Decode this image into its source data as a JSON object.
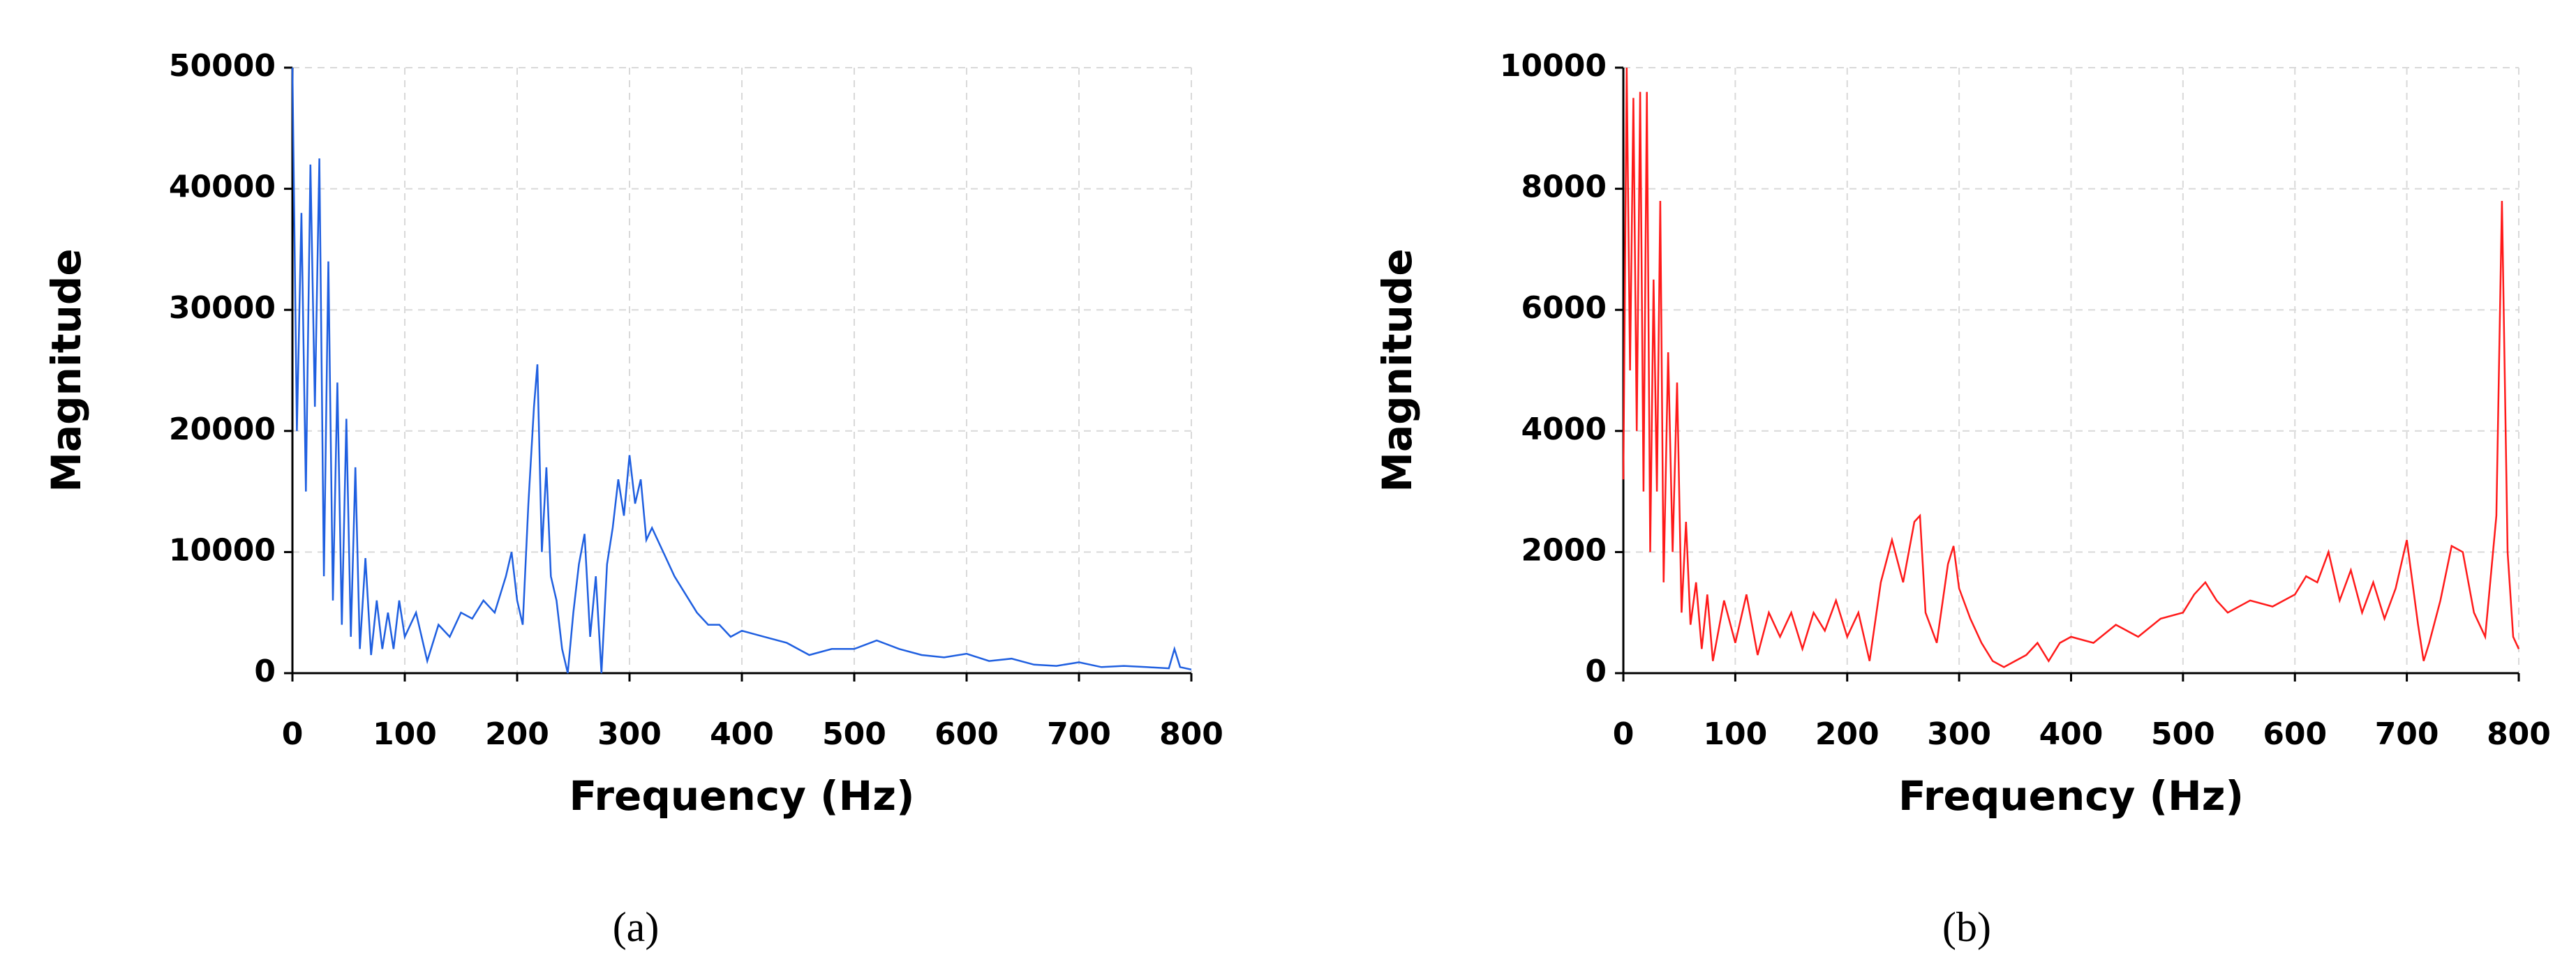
{
  "chart_data": [
    {
      "type": "line",
      "xlabel": "Frequency (Hz)",
      "ylabel": "Magnitude",
      "caption": "(a)",
      "grid": true,
      "xlim": [
        0,
        800
      ],
      "xticks": [
        0,
        100,
        200,
        300,
        400,
        500,
        600,
        700,
        800
      ],
      "ylim": [
        0,
        50000
      ],
      "yticks": [
        0,
        10000,
        20000,
        30000,
        40000,
        50000
      ],
      "x": [
        0,
        4,
        8,
        12,
        16,
        20,
        24,
        28,
        32,
        36,
        40,
        44,
        48,
        52,
        56,
        60,
        65,
        70,
        75,
        80,
        85,
        90,
        95,
        100,
        110,
        120,
        130,
        140,
        150,
        160,
        170,
        180,
        190,
        195,
        200,
        205,
        210,
        215,
        218,
        222,
        226,
        230,
        235,
        240,
        245,
        250,
        255,
        260,
        265,
        270,
        275,
        280,
        285,
        290,
        295,
        300,
        305,
        310,
        315,
        320,
        330,
        340,
        350,
        360,
        370,
        380,
        390,
        400,
        420,
        440,
        460,
        480,
        500,
        520,
        540,
        560,
        580,
        600,
        620,
        640,
        660,
        680,
        700,
        720,
        740,
        760,
        780,
        785,
        790,
        800
      ],
      "series": [
        {
          "color": "#1f5fe0",
          "values": [
            50000,
            20000,
            38000,
            15000,
            42000,
            22000,
            42500,
            8000,
            34000,
            6000,
            24000,
            4000,
            21000,
            3000,
            17000,
            2000,
            9500,
            1500,
            6000,
            2000,
            5000,
            2000,
            6000,
            3000,
            5000,
            1000,
            4000,
            3000,
            5000,
            4500,
            6000,
            5000,
            8000,
            10000,
            6000,
            4000,
            14000,
            22000,
            25500,
            10000,
            17000,
            8000,
            6000,
            2000,
            0,
            5000,
            9000,
            11500,
            3000,
            8000,
            0,
            9000,
            12000,
            16000,
            13000,
            18000,
            14000,
            16000,
            11000,
            12000,
            10000,
            8000,
            6500,
            5000,
            4000,
            4000,
            3000,
            3500,
            3000,
            2500,
            1500,
            2000,
            2000,
            2700,
            2000,
            1500,
            1300,
            1600,
            1000,
            1200,
            700,
            600,
            900,
            500,
            600,
            500,
            400,
            2000,
            500,
            300
          ]
        }
      ]
    },
    {
      "type": "line",
      "xlabel": "Frequency (Hz)",
      "ylabel": "Magnitude",
      "caption": "(b)",
      "grid": true,
      "xlim": [
        0,
        800
      ],
      "xticks": [
        0,
        100,
        200,
        300,
        400,
        500,
        600,
        700,
        800
      ],
      "ylim": [
        0,
        10000
      ],
      "yticks": [
        0,
        2000,
        4000,
        6000,
        8000,
        10000
      ],
      "x": [
        0,
        3,
        6,
        9,
        12,
        15,
        18,
        21,
        24,
        27,
        30,
        33,
        36,
        40,
        44,
        48,
        52,
        56,
        60,
        65,
        70,
        75,
        80,
        90,
        100,
        110,
        120,
        130,
        140,
        150,
        160,
        170,
        180,
        190,
        200,
        210,
        220,
        230,
        240,
        250,
        260,
        265,
        270,
        280,
        290,
        295,
        300,
        310,
        320,
        330,
        340,
        350,
        360,
        370,
        380,
        390,
        400,
        420,
        440,
        460,
        480,
        500,
        510,
        520,
        530,
        540,
        560,
        580,
        600,
        610,
        620,
        630,
        640,
        650,
        660,
        670,
        680,
        690,
        700,
        710,
        715,
        720,
        730,
        740,
        750,
        760,
        770,
        775,
        780,
        785,
        790,
        795,
        800
      ],
      "series": [
        {
          "color": "#ff1a1a",
          "values": [
            3200,
            10000,
            5000,
            9500,
            4000,
            9600,
            3000,
            9600,
            2000,
            6500,
            3000,
            7800,
            1500,
            5300,
            2000,
            4800,
            1000,
            2500,
            800,
            1500,
            400,
            1300,
            200,
            1200,
            500,
            1300,
            300,
            1000,
            600,
            1000,
            400,
            1000,
            700,
            1200,
            600,
            1000,
            200,
            1500,
            2200,
            1500,
            2500,
            2600,
            1000,
            500,
            1800,
            2100,
            1400,
            900,
            500,
            200,
            100,
            200,
            300,
            500,
            200,
            500,
            600,
            500,
            800,
            600,
            900,
            1000,
            1300,
            1500,
            1200,
            1000,
            1200,
            1100,
            1300,
            1600,
            1500,
            2000,
            1200,
            1700,
            1000,
            1500,
            900,
            1400,
            2200,
            800,
            200,
            500,
            1200,
            2100,
            2000,
            1000,
            600,
            1600,
            2600,
            7800,
            2000,
            600,
            400
          ]
        }
      ]
    }
  ]
}
